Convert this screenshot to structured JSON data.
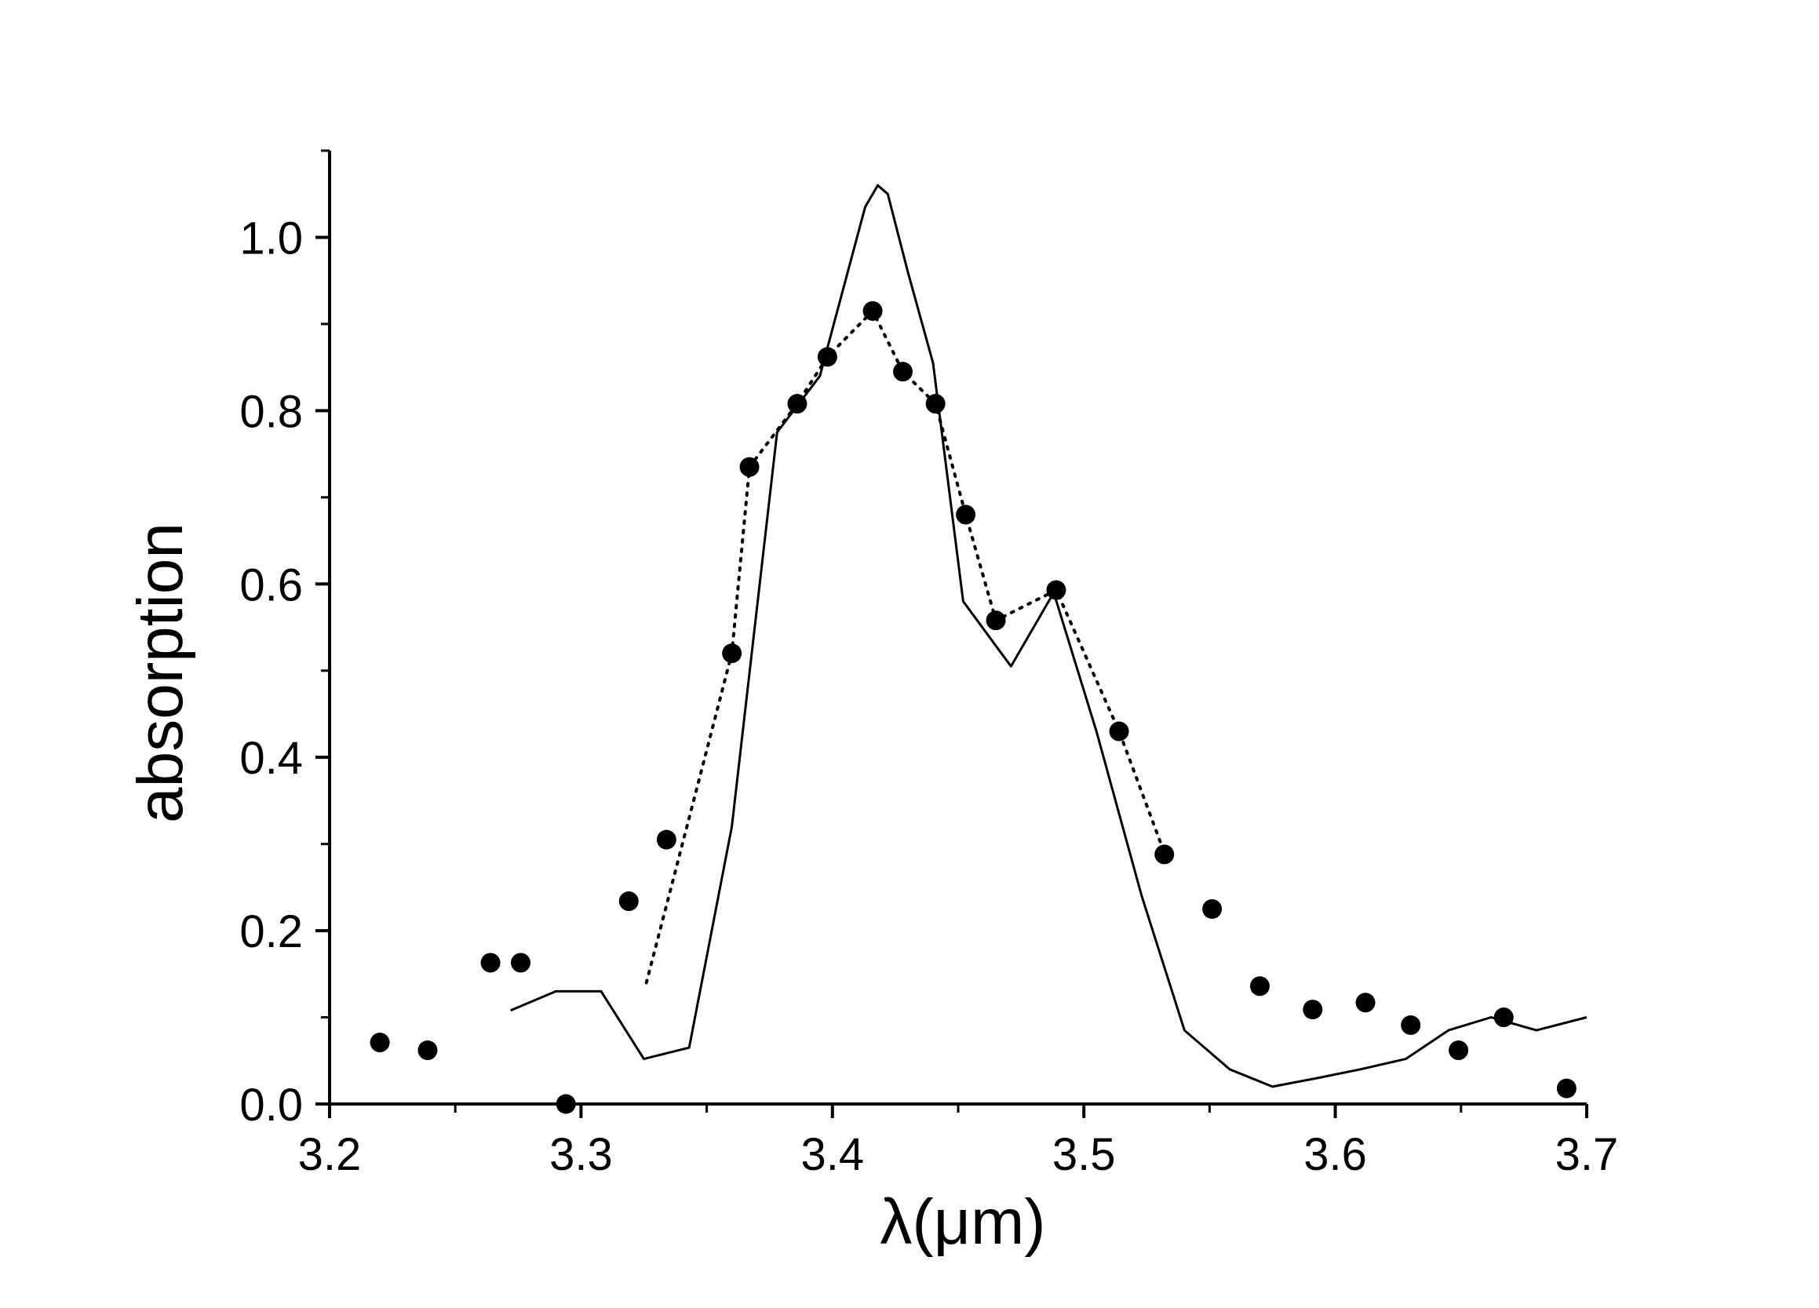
{
  "chart_data": {
    "type": "line",
    "title": "",
    "xlabel": "λ(μm)",
    "ylabel": "absorption",
    "xlim": [
      3.2,
      3.7
    ],
    "ylim": [
      0.0,
      1.1
    ],
    "x_ticks": [
      "3.2",
      "3.3",
      "3.4",
      "3.5",
      "3.6",
      "3.7"
    ],
    "y_ticks": [
      "0.0",
      "0.2",
      "0.4",
      "0.6",
      "0.8",
      "1.0"
    ],
    "grid": false,
    "legend": "none",
    "series": [
      {
        "style": "solid",
        "color": "#000000",
        "x": [
          3.272,
          3.29,
          3.308,
          3.325,
          3.343,
          3.36,
          3.378,
          3.395,
          3.413,
          3.418,
          3.422,
          3.43,
          3.44,
          3.452,
          3.471,
          3.488,
          3.505,
          3.523,
          3.54,
          3.558,
          3.575,
          3.593,
          3.61,
          3.628,
          3.645,
          3.662,
          3.68,
          3.7
        ],
        "y": [
          0.108,
          0.13,
          0.13,
          0.052,
          0.065,
          0.32,
          0.775,
          0.84,
          1.035,
          1.06,
          1.05,
          0.96,
          0.855,
          0.58,
          0.505,
          0.59,
          0.43,
          0.24,
          0.085,
          0.04,
          0.02,
          0.03,
          0.04,
          0.052,
          0.085,
          0.1,
          0.085,
          0.1
        ]
      },
      {
        "style": "dotted",
        "color": "#000000",
        "x": [
          3.326,
          3.343,
          3.36,
          3.367,
          3.386,
          3.398,
          3.416,
          3.428,
          3.441,
          3.453,
          3.465,
          3.489,
          3.514,
          3.532
        ],
        "y": [
          0.14,
          0.33,
          0.52,
          0.735,
          0.808,
          0.862,
          0.915,
          0.845,
          0.808,
          0.68,
          0.558,
          0.593,
          0.43,
          0.29
        ]
      },
      {
        "style": "markers",
        "color": "#000000",
        "x": [
          3.22,
          3.239,
          3.264,
          3.276,
          3.294,
          3.319,
          3.334,
          3.36,
          3.367,
          3.386,
          3.398,
          3.416,
          3.428,
          3.441,
          3.453,
          3.465,
          3.489,
          3.514,
          3.532,
          3.551,
          3.57,
          3.591,
          3.612,
          3.63,
          3.649,
          3.667,
          3.692
        ],
        "y": [
          0.071,
          0.062,
          0.163,
          0.163,
          0.0,
          0.234,
          0.305,
          0.52,
          0.735,
          0.808,
          0.862,
          0.915,
          0.845,
          0.808,
          0.68,
          0.558,
          0.593,
          0.43,
          0.288,
          0.225,
          0.136,
          0.109,
          0.117,
          0.091,
          0.062,
          0.1,
          0.018
        ]
      }
    ]
  }
}
